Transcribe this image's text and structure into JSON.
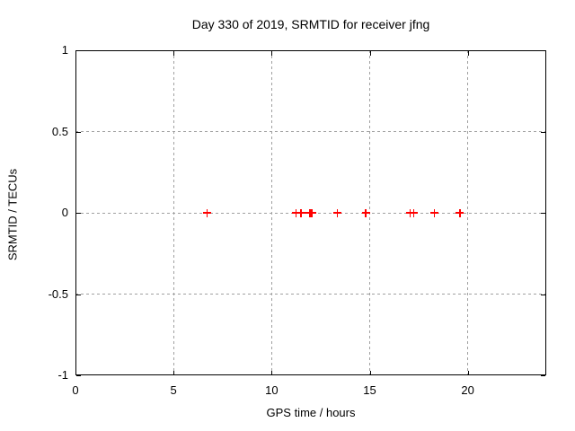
{
  "window": {
    "background": "#ffffff"
  },
  "colors": {
    "marker": "#ff0000",
    "grid": "#a0a0a0",
    "border": "#000000",
    "text": "#000000"
  },
  "chart_data": {
    "type": "scatter",
    "title": "Day 330 of 2019, SRMTID for receiver jfng",
    "xlabel": "GPS time / hours",
    "ylabel": "SRMTID / TECUs",
    "xlim": [
      0,
      24
    ],
    "ylim": [
      -1,
      1
    ],
    "xticks": [
      0,
      5,
      10,
      15,
      20
    ],
    "yticks": [
      -1,
      -0.5,
      0,
      0.5,
      1
    ],
    "xtick_labels": [
      "0",
      "5",
      "10",
      "15",
      "20"
    ],
    "ytick_labels": [
      "-1",
      "-0.5",
      "0",
      "0.5",
      "1"
    ],
    "grid": true,
    "legend": false,
    "marker_style": "plus",
    "series": [
      {
        "name": "SRMTID",
        "color": "#ff0000",
        "x": [
          6.7,
          11.25,
          11.5,
          11.95,
          12.05,
          13.35,
          14.8,
          17.05,
          17.25,
          18.3,
          19.6
        ],
        "y": [
          0,
          0,
          0,
          0,
          0,
          0,
          0,
          0,
          0,
          0,
          0
        ]
      }
    ]
  }
}
